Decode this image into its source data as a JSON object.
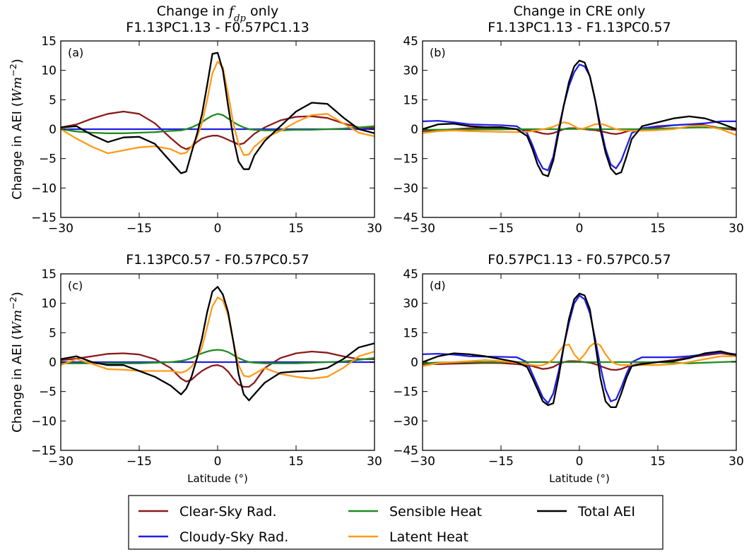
{
  "figure": {
    "column_titles": [
      {
        "lines": [
          "Change in f_dp only",
          "F1.13PC1.13 - F0.57PC1.13"
        ]
      },
      {
        "lines": [
          "Change in CRE only",
          "F1.13PC1.13 - F1.13PC0.57"
        ]
      }
    ],
    "legend": [
      {
        "name": "Clear-Sky Rad.",
        "color": "#8b1a1a"
      },
      {
        "name": "Sensible Heat",
        "color": "#228b22"
      },
      {
        "name": "Total AEI",
        "color": "#000000"
      },
      {
        "name": "Cloudy-Sky Rad.",
        "color": "#1f1fe6"
      },
      {
        "name": "Latent Heat",
        "color": "#ff9a1a"
      }
    ]
  },
  "chart_data": [
    {
      "type": "line",
      "panel_label": "(a)",
      "title_lines": [
        "Change in f_dp only",
        "F1.13PC1.13 - F0.57PC1.13"
      ],
      "xlabel": "",
      "ylabel": "Change in AEI (Wm^-2)",
      "xlim": [
        -30,
        30
      ],
      "ylim": [
        -15,
        15
      ],
      "xticks": [
        -30,
        -15,
        0,
        15,
        30
      ],
      "yticks": [
        -15,
        -10,
        -5,
        0,
        5,
        10,
        15
      ],
      "grid": false,
      "x": [
        -30,
        -27,
        -24,
        -21,
        -18,
        -15,
        -12,
        -9,
        -7,
        -6,
        -5,
        -4,
        -3,
        -2,
        -1,
        0,
        1,
        2,
        3,
        4,
        5,
        6,
        7,
        9,
        12,
        15,
        18,
        21,
        24,
        27,
        30
      ],
      "series": [
        {
          "name": "Clear-Sky Rad.",
          "color": "#8b1a1a",
          "values": [
            0.3,
            0.8,
            1.8,
            2.6,
            3.0,
            2.6,
            1.0,
            -1.5,
            -3.0,
            -3.4,
            -3.0,
            -2.2,
            -1.6,
            -1.3,
            -1.1,
            -1.1,
            -1.4,
            -1.8,
            -2.2,
            -2.6,
            -2.4,
            -1.6,
            -0.8,
            0.3,
            1.5,
            2.1,
            2.2,
            1.9,
            1.0,
            0.3,
            0.2
          ]
        },
        {
          "name": "Cloudy-Sky Rad.",
          "color": "#1f1fe6",
          "values": [
            0,
            0,
            0,
            0,
            0,
            0,
            0,
            0,
            0,
            0,
            0,
            0,
            0,
            0,
            0,
            0,
            0,
            0,
            0,
            0,
            0,
            0,
            0,
            0,
            0,
            0,
            0,
            0,
            0,
            0,
            0
          ]
        },
        {
          "name": "Sensible Heat",
          "color": "#228b22",
          "values": [
            0.0,
            -0.4,
            -0.6,
            -0.7,
            -0.7,
            -0.6,
            -0.5,
            -0.3,
            -0.2,
            0.0,
            0.3,
            0.7,
            1.2,
            1.8,
            2.3,
            2.6,
            2.4,
            1.8,
            1.2,
            0.7,
            0.3,
            0.0,
            -0.1,
            -0.2,
            -0.2,
            -0.1,
            -0.1,
            0.0,
            0.1,
            0.3,
            0.5
          ]
        },
        {
          "name": "Latent Heat",
          "color": "#ff9a1a",
          "values": [
            0.0,
            -1.6,
            -3.0,
            -4.1,
            -3.6,
            -3.1,
            -2.9,
            -3.4,
            -4.2,
            -4.0,
            -3.0,
            -1.5,
            1.0,
            5.0,
            9.5,
            11.5,
            10.5,
            6.0,
            1.0,
            -2.5,
            -4.4,
            -4.3,
            -3.0,
            -1.5,
            -0.3,
            1.2,
            2.4,
            2.6,
            1.0,
            -0.6,
            -1.2
          ]
        },
        {
          "name": "Total AEI",
          "color": "#000000",
          "values": [
            0.3,
            0.5,
            -1.0,
            -2.2,
            -1.4,
            -1.3,
            -2.5,
            -5.5,
            -7.5,
            -7.2,
            -4.0,
            -1.0,
            2.5,
            7.5,
            12.8,
            13.0,
            10.0,
            4.0,
            -1.5,
            -5.5,
            -6.8,
            -6.8,
            -4.5,
            -2.0,
            0.5,
            3.0,
            4.5,
            4.3,
            2.0,
            0.0,
            -0.7
          ]
        }
      ]
    },
    {
      "type": "line",
      "panel_label": "(b)",
      "title_lines": [
        "Change in CRE only",
        "F1.13PC1.13 - F1.13PC0.57"
      ],
      "xlabel": "",
      "ylabel": "",
      "xlim": [
        -30,
        30
      ],
      "ylim": [
        -45,
        45
      ],
      "xticks": [
        -30,
        -15,
        0,
        15,
        30
      ],
      "yticks": [
        -45,
        -30,
        -15,
        0,
        15,
        30,
        45
      ],
      "grid": false,
      "x": [
        -30,
        -27,
        -24,
        -21,
        -18,
        -15,
        -12,
        -10,
        -9,
        -8,
        -7,
        -6,
        -5,
        -4,
        -3,
        -2,
        -1,
        0,
        1,
        2,
        3,
        4,
        5,
        6,
        7,
        8,
        9,
        10,
        12,
        15,
        18,
        21,
        24,
        27,
        30
      ],
      "series": [
        {
          "name": "Clear-Sky Rad.",
          "color": "#8b1a1a",
          "values": [
            -1.0,
            -0.5,
            0.0,
            0.5,
            0.6,
            0.4,
            0.0,
            -0.5,
            -1.0,
            -1.5,
            -2.2,
            -2.5,
            -2.0,
            -1.0,
            0.0,
            0.5,
            0.5,
            0.3,
            0.0,
            -0.3,
            -0.5,
            -1.0,
            -1.6,
            -2.2,
            -2.5,
            -2.0,
            -1.2,
            -0.5,
            0.2,
            1.0,
            2.0,
            2.5,
            2.0,
            0.5,
            -0.5
          ]
        },
        {
          "name": "Cloudy-Sky Rad.",
          "color": "#1f1fe6",
          "values": [
            4.0,
            4.3,
            3.5,
            2.5,
            2.2,
            2.0,
            1.5,
            -2.0,
            -8.0,
            -15.0,
            -20.0,
            -21.0,
            -14.0,
            0.0,
            12.0,
            22.0,
            29.0,
            33.0,
            32.0,
            27.0,
            15.0,
            2.0,
            -10.0,
            -18.0,
            -20.0,
            -16.0,
            -9.0,
            -2.0,
            0.5,
            1.5,
            2.0,
            2.5,
            3.0,
            4.0,
            4.0
          ]
        },
        {
          "name": "Sensible Heat",
          "color": "#228b22",
          "values": [
            -0.3,
            -0.3,
            -0.2,
            -0.2,
            -0.1,
            -0.1,
            0.0,
            0.0,
            0.0,
            0.0,
            0.0,
            0.0,
            0.0,
            0.0,
            0.0,
            0.1,
            0.1,
            0.1,
            0.1,
            0.1,
            0.0,
            0.0,
            0.0,
            0.0,
            0.0,
            0.0,
            0.0,
            0.0,
            0.0,
            0.2,
            0.5,
            0.8,
            0.9,
            0.7,
            0.4
          ]
        },
        {
          "name": "Latent Heat",
          "color": "#ff9a1a",
          "values": [
            -2.0,
            -1.0,
            -0.7,
            -1.0,
            -1.2,
            -1.4,
            -1.5,
            -1.3,
            -1.0,
            -0.5,
            0.0,
            0.5,
            1.2,
            2.5,
            3.5,
            3.0,
            1.5,
            0.0,
            0.5,
            1.5,
            2.5,
            2.8,
            2.0,
            1.0,
            0.0,
            -0.5,
            -0.7,
            -0.8,
            -0.8,
            -0.5,
            0.0,
            1.5,
            1.8,
            0.0,
            -3.0
          ]
        },
        {
          "name": "Total AEI",
          "color": "#000000",
          "values": [
            0.0,
            2.5,
            2.8,
            1.5,
            1.0,
            1.0,
            0.0,
            -3.5,
            -10.0,
            -18.0,
            -23.0,
            -24.0,
            -16.0,
            -2.0,
            12.0,
            24.0,
            32.0,
            35.0,
            34.0,
            27.0,
            15.0,
            0.0,
            -12.0,
            -20.0,
            -23.0,
            -22.0,
            -14.0,
            -5.0,
            1.5,
            3.5,
            5.5,
            6.5,
            5.5,
            3.0,
            0.0
          ]
        }
      ]
    },
    {
      "type": "line",
      "panel_label": "(c)",
      "title_lines": [
        "F1.13PC0.57 - F0.57PC0.57"
      ],
      "xlabel": "Latitude (°)",
      "ylabel": "Change in AEI (Wm^-2)",
      "xlim": [
        -30,
        30
      ],
      "ylim": [
        -15,
        15
      ],
      "xticks": [
        -30,
        -15,
        0,
        15,
        30
      ],
      "yticks": [
        -15,
        -10,
        -5,
        0,
        5,
        10,
        15
      ],
      "grid": false,
      "x": [
        -30,
        -27,
        -24,
        -21,
        -18,
        -15,
        -12,
        -9,
        -7,
        -6,
        -5,
        -4,
        -3,
        -2,
        -1,
        0,
        1,
        2,
        3,
        4,
        5,
        6,
        7,
        9,
        12,
        15,
        18,
        21,
        24,
        27,
        30
      ],
      "series": [
        {
          "name": "Clear-Sky Rad.",
          "color": "#8b1a1a",
          "values": [
            0.3,
            0.6,
            1.0,
            1.4,
            1.5,
            1.3,
            0.5,
            -1.0,
            -2.8,
            -3.3,
            -3.0,
            -2.2,
            -1.5,
            -1.0,
            -0.6,
            -0.5,
            -0.8,
            -1.6,
            -2.8,
            -3.8,
            -4.2,
            -4.2,
            -3.5,
            -1.0,
            0.7,
            1.5,
            1.8,
            1.6,
            1.0,
            0.5,
            0.5
          ]
        },
        {
          "name": "Cloudy-Sky Rad.",
          "color": "#1f1fe6",
          "values": [
            0,
            0,
            0,
            0,
            0,
            0,
            0,
            0,
            0,
            0,
            0,
            0,
            0,
            0,
            0,
            0,
            0,
            0,
            0,
            0,
            0,
            0,
            0,
            0,
            0,
            0,
            0,
            0,
            0,
            0,
            0
          ]
        },
        {
          "name": "Sensible Heat",
          "color": "#228b22",
          "values": [
            -0.2,
            -0.2,
            -0.2,
            -0.2,
            -0.2,
            -0.2,
            -0.1,
            0.0,
            0.2,
            0.4,
            0.7,
            1.1,
            1.5,
            1.8,
            2.0,
            2.1,
            2.0,
            1.7,
            1.2,
            0.7,
            0.3,
            0.0,
            -0.1,
            -0.2,
            -0.2,
            -0.2,
            -0.1,
            0.0,
            0.1,
            0.4,
            0.7
          ]
        },
        {
          "name": "Latent Heat",
          "color": "#ff9a1a",
          "values": [
            -0.5,
            0.5,
            -0.3,
            -1.2,
            -1.3,
            -1.5,
            -1.5,
            -1.5,
            -1.8,
            -1.5,
            -0.8,
            0.5,
            2.5,
            6.0,
            9.5,
            11.0,
            10.5,
            8.0,
            3.5,
            -0.5,
            -2.3,
            -2.5,
            -2.0,
            -1.0,
            -2.0,
            -2.5,
            -2.8,
            -2.5,
            -1.0,
            1.0,
            1.8
          ]
        },
        {
          "name": "Total AEI",
          "color": "#000000",
          "values": [
            0.5,
            1.0,
            0.0,
            -0.5,
            -0.5,
            -1.5,
            -2.5,
            -4.0,
            -5.5,
            -4.5,
            -2.5,
            0.5,
            4.0,
            8.5,
            12.0,
            12.8,
            11.5,
            8.5,
            3.5,
            -2.0,
            -5.5,
            -6.5,
            -5.5,
            -3.5,
            -1.8,
            -1.6,
            -1.5,
            -1.0,
            0.5,
            2.5,
            3.2
          ]
        }
      ]
    },
    {
      "type": "line",
      "panel_label": "(d)",
      "title_lines": [
        "F0.57PC1.13 - F0.57PC0.57"
      ],
      "xlabel": "Latitude (°)",
      "ylabel": "",
      "xlim": [
        -30,
        30
      ],
      "ylim": [
        -45,
        45
      ],
      "xticks": [
        -30,
        -15,
        0,
        15,
        30
      ],
      "yticks": [
        -45,
        -30,
        -15,
        0,
        15,
        30,
        45
      ],
      "grid": false,
      "x": [
        -30,
        -27,
        -24,
        -21,
        -18,
        -15,
        -12,
        -10,
        -9,
        -8,
        -7,
        -6,
        -5,
        -4,
        -3,
        -2,
        -1,
        0,
        1,
        2,
        3,
        4,
        5,
        6,
        7,
        8,
        9,
        10,
        12,
        15,
        18,
        21,
        24,
        27,
        30
      ],
      "series": [
        {
          "name": "Clear-Sky Rad.",
          "color": "#8b1a1a",
          "values": [
            -1.0,
            -1.0,
            -0.8,
            -0.6,
            -0.4,
            -0.5,
            -1.0,
            -1.5,
            -2.0,
            -2.8,
            -3.5,
            -3.2,
            -2.5,
            -1.0,
            0.0,
            0.5,
            0.5,
            0.3,
            0.0,
            -0.3,
            -1.0,
            -2.0,
            -3.0,
            -3.8,
            -4.0,
            -3.5,
            -2.5,
            -1.5,
            -0.8,
            0.0,
            1.0,
            2.5,
            3.5,
            4.5,
            3.5
          ]
        },
        {
          "name": "Cloudy-Sky Rad.",
          "color": "#1f1fe6",
          "values": [
            4.0,
            4.3,
            3.8,
            3.0,
            2.8,
            2.7,
            2.5,
            0.0,
            -6.0,
            -12.0,
            -18.0,
            -21.0,
            -16.0,
            -5.0,
            8.0,
            20.0,
            30.0,
            34.0,
            32.0,
            25.0,
            12.0,
            -2.0,
            -14.0,
            -20.0,
            -19.0,
            -13.0,
            -6.0,
            0.0,
            2.5,
            2.5,
            2.5,
            3.0,
            4.0,
            5.0,
            4.0
          ]
        },
        {
          "name": "Sensible Heat",
          "color": "#228b22",
          "values": [
            -0.5,
            -0.2,
            -0.1,
            0.0,
            0.0,
            0.0,
            0.0,
            0.0,
            0.0,
            0.0,
            0.0,
            0.0,
            0.0,
            0.0,
            0.0,
            0.0,
            0.0,
            0.0,
            0.0,
            0.0,
            0.0,
            0.0,
            0.0,
            0.0,
            0.0,
            0.0,
            0.0,
            0.0,
            0.0,
            0.0,
            -0.3,
            -0.6,
            -0.3,
            0.0,
            0.3
          ]
        },
        {
          "name": "Latent Heat",
          "color": "#ff9a1a",
          "values": [
            -2.0,
            -0.5,
            0.0,
            0.5,
            1.0,
            0.5,
            -0.3,
            -1.0,
            -1.5,
            -1.8,
            -1.5,
            -0.5,
            1.5,
            5.0,
            8.5,
            9.0,
            4.0,
            1.0,
            4.0,
            8.0,
            10.0,
            8.5,
            4.0,
            0.5,
            -1.0,
            -1.5,
            -1.5,
            -1.5,
            -1.5,
            -1.5,
            -1.0,
            0.0,
            1.5,
            3.0,
            3.0
          ]
        },
        {
          "name": "Total AEI",
          "color": "#000000",
          "values": [
            0.0,
            3.0,
            4.5,
            4.0,
            3.0,
            1.5,
            0.0,
            -2.5,
            -8.0,
            -14.0,
            -20.0,
            -22.0,
            -21.0,
            -8.0,
            8.0,
            22.0,
            32.0,
            35.0,
            34.0,
            27.0,
            10.0,
            -8.0,
            -20.0,
            -23.0,
            -23.0,
            -16.0,
            -8.0,
            -2.0,
            -1.0,
            0.0,
            0.5,
            2.0,
            4.5,
            5.5,
            3.5
          ]
        }
      ]
    }
  ]
}
